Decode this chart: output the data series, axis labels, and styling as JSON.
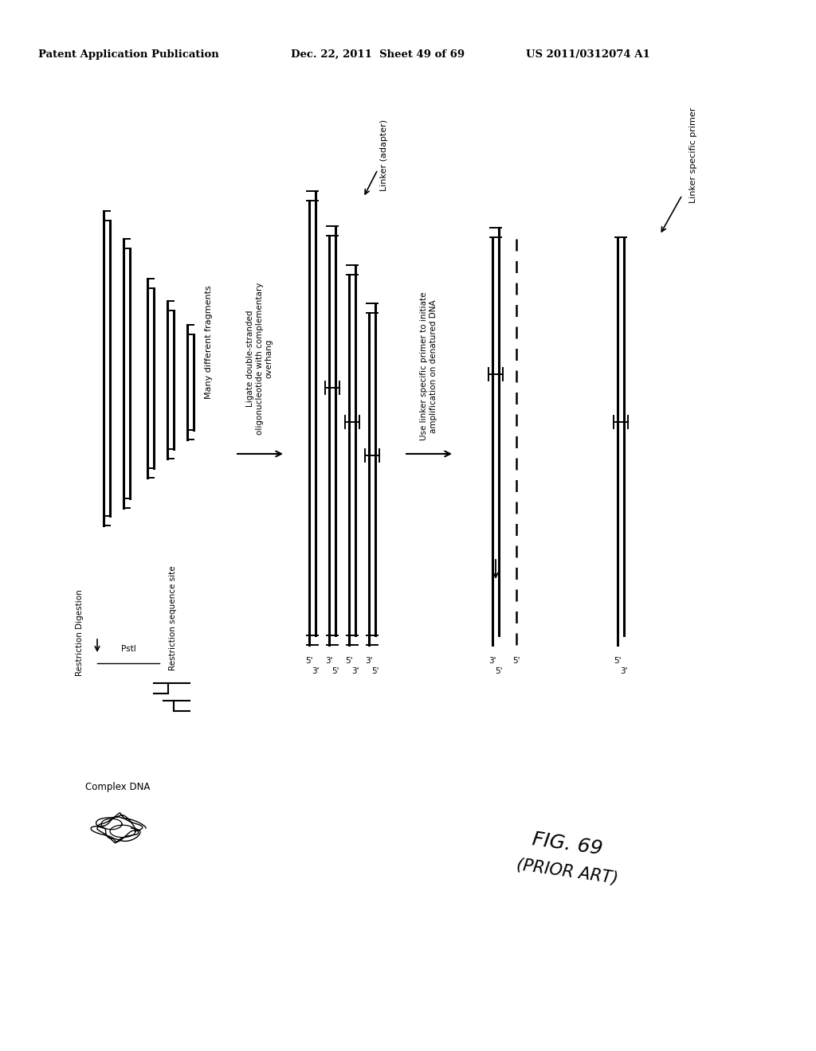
{
  "bg_color": "#ffffff",
  "header1": "Patent Application Publication",
  "header2": "Dec. 22, 2011  Sheet 49 of 69",
  "header3": "US 2011/0312074 A1"
}
